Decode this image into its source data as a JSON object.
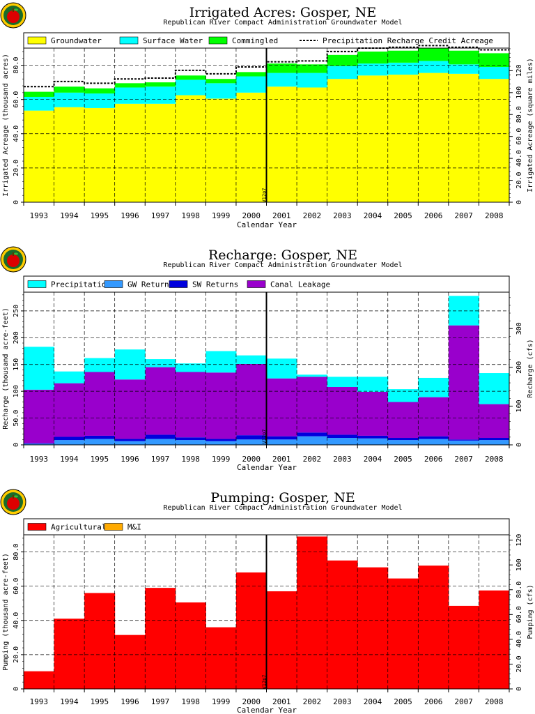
{
  "marker_label": "V12p7",
  "chart_data": [
    {
      "type": "bar",
      "stacked": true,
      "title": "Irrigated Acres: Gosper, NE",
      "subtitle": "Republican River Compact Administration Groundwater Model",
      "xlabel": "Calendar Year",
      "ylabel": "Irrigated Acreage (thousand acres)",
      "ylabel_right": "Irrigated Acreage (square miles)",
      "categories": [
        "1993",
        "1994",
        "1995",
        "1996",
        "1997",
        "1998",
        "1999",
        "2000",
        "2001",
        "2002",
        "2003",
        "2004",
        "2005",
        "2006",
        "2007",
        "2008"
      ],
      "ylim": [
        0,
        90
      ],
      "yticks": [
        "0",
        "20.0",
        "40.0",
        "60.0",
        "80.0"
      ],
      "ytick_values": [
        0,
        20,
        40,
        60,
        80
      ],
      "yticks_right": [
        "0",
        "20.0",
        "40.0",
        "60.0",
        "80.0",
        "100",
        "120"
      ],
      "yticks_right_values": [
        0,
        20,
        40,
        60,
        80,
        100,
        120
      ],
      "ylim_right": [
        0,
        140.6
      ],
      "grid": true,
      "legend_position": "top",
      "series": [
        {
          "name": "Groundwater",
          "color": "#ffff00",
          "values": [
            53.5,
            55.5,
            55.0,
            57.5,
            57.5,
            62.5,
            60.5,
            64.0,
            67.5,
            67.0,
            72.0,
            74.0,
            74.5,
            75.5,
            75.0,
            72.0
          ]
        },
        {
          "name": "Surface Water",
          "color": "#00ffff",
          "values": [
            8.0,
            8.5,
            8.5,
            9.5,
            10.0,
            9.0,
            9.0,
            9.5,
            8.0,
            8.5,
            7.5,
            7.0,
            7.0,
            7.0,
            5.5,
            7.0
          ]
        },
        {
          "name": "Commingled",
          "color": "#00ff00",
          "values": [
            3.0,
            3.5,
            3.0,
            2.5,
            2.5,
            2.5,
            2.5,
            2.5,
            5.5,
            5.0,
            6.5,
            7.0,
            7.0,
            7.5,
            8.0,
            8.0
          ]
        }
      ],
      "line_series": {
        "name": "Precipitation Recharge Credit Acreage",
        "values": [
          67.5,
          70.5,
          69.5,
          72.0,
          72.5,
          77.0,
          75.0,
          79.0,
          82.0,
          82.5,
          88.0,
          90.0,
          90.5,
          91.5,
          90.5,
          89.0
        ]
      },
      "marker_after": "2000"
    },
    {
      "type": "bar",
      "stacked": true,
      "title": "Recharge: Gosper, NE",
      "subtitle": "Republican River Compact Administration Groundwater Model",
      "xlabel": "Calendar Year",
      "ylabel": "Recharge (thousand acre-feet)",
      "ylabel_right": "Recharge (cfs)",
      "categories": [
        "1993",
        "1994",
        "1995",
        "1996",
        "1997",
        "1998",
        "1999",
        "2000",
        "2001",
        "2002",
        "2003",
        "2004",
        "2005",
        "2006",
        "2007",
        "2008"
      ],
      "ylim": [
        0,
        285
      ],
      "yticks": [
        "0",
        "50.0",
        "100",
        "150",
        "200",
        "250"
      ],
      "ytick_values": [
        0,
        50,
        100,
        150,
        200,
        250
      ],
      "yticks_right": [
        "0",
        "100",
        "200",
        "300"
      ],
      "yticks_right_values": [
        0,
        100,
        200,
        300
      ],
      "ylim_right": [
        0,
        394
      ],
      "grid": true,
      "legend_position": "top",
      "series": [
        {
          "name": "GW Returns",
          "color": "#3399ff",
          "values": [
            2,
            9,
            11,
            7,
            11,
            9,
            7,
            10,
            10,
            16,
            13,
            12,
            9,
            11,
            8,
            9
          ]
        },
        {
          "name": "SW Returns",
          "color": "#0000dd",
          "values": [
            1,
            6,
            6,
            4,
            8,
            5,
            4,
            8,
            6,
            7,
            6,
            5,
            4,
            5,
            2,
            4
          ]
        },
        {
          "name": "Canal Leakage",
          "color": "#9900cc",
          "values": [
            100,
            100,
            119,
            111,
            126,
            122,
            124,
            133,
            108,
            104,
            89,
            82,
            67,
            73,
            213,
            63
          ]
        },
        {
          "name": "Precipitation",
          "color": "#00ffff",
          "values": [
            80,
            22,
            26,
            56,
            15,
            16,
            40,
            16,
            37,
            4,
            19,
            28,
            24,
            36,
            55,
            58
          ]
        }
      ],
      "marker_after": "2000"
    },
    {
      "type": "bar",
      "stacked": true,
      "title": "Pumping: Gosper, NE",
      "subtitle": "Republican River Compact Administration Groundwater Model",
      "xlabel": "Calendar Year",
      "ylabel": "Pumping (thousand acre-feet)",
      "ylabel_right": "Pumping (cfs)",
      "categories": [
        "1993",
        "1994",
        "1995",
        "1996",
        "1997",
        "1998",
        "1999",
        "2000",
        "2001",
        "2002",
        "2003",
        "2004",
        "2005",
        "2006",
        "2007",
        "2008"
      ],
      "ylim": [
        0,
        90
      ],
      "yticks": [
        "0",
        "20.0",
        "40.0",
        "60.0",
        "80.0"
      ],
      "ytick_values": [
        0,
        20,
        40,
        60,
        80
      ],
      "yticks_right": [
        "0",
        "20.0",
        "40.0",
        "60.0",
        "80.0",
        "100",
        "120"
      ],
      "yticks_right_values": [
        0,
        20,
        40,
        60,
        80,
        100,
        120
      ],
      "ylim_right": [
        0,
        124.3
      ],
      "grid": true,
      "legend_position": "top",
      "series": [
        {
          "name": "Agricultural",
          "color": "#ff0000",
          "values": [
            10.3,
            41.0,
            56.0,
            31.5,
            59.0,
            50.5,
            36.0,
            68.0,
            57.0,
            89.0,
            75.0,
            71.0,
            64.5,
            72.0,
            48.5,
            57.5
          ]
        },
        {
          "name": "M&I",
          "color": "#ffaa00",
          "values": [
            0,
            0,
            0,
            0,
            0,
            0,
            0,
            0,
            0,
            0,
            0,
            0,
            0,
            0,
            0,
            0
          ]
        }
      ],
      "marker_after": "2000"
    }
  ]
}
